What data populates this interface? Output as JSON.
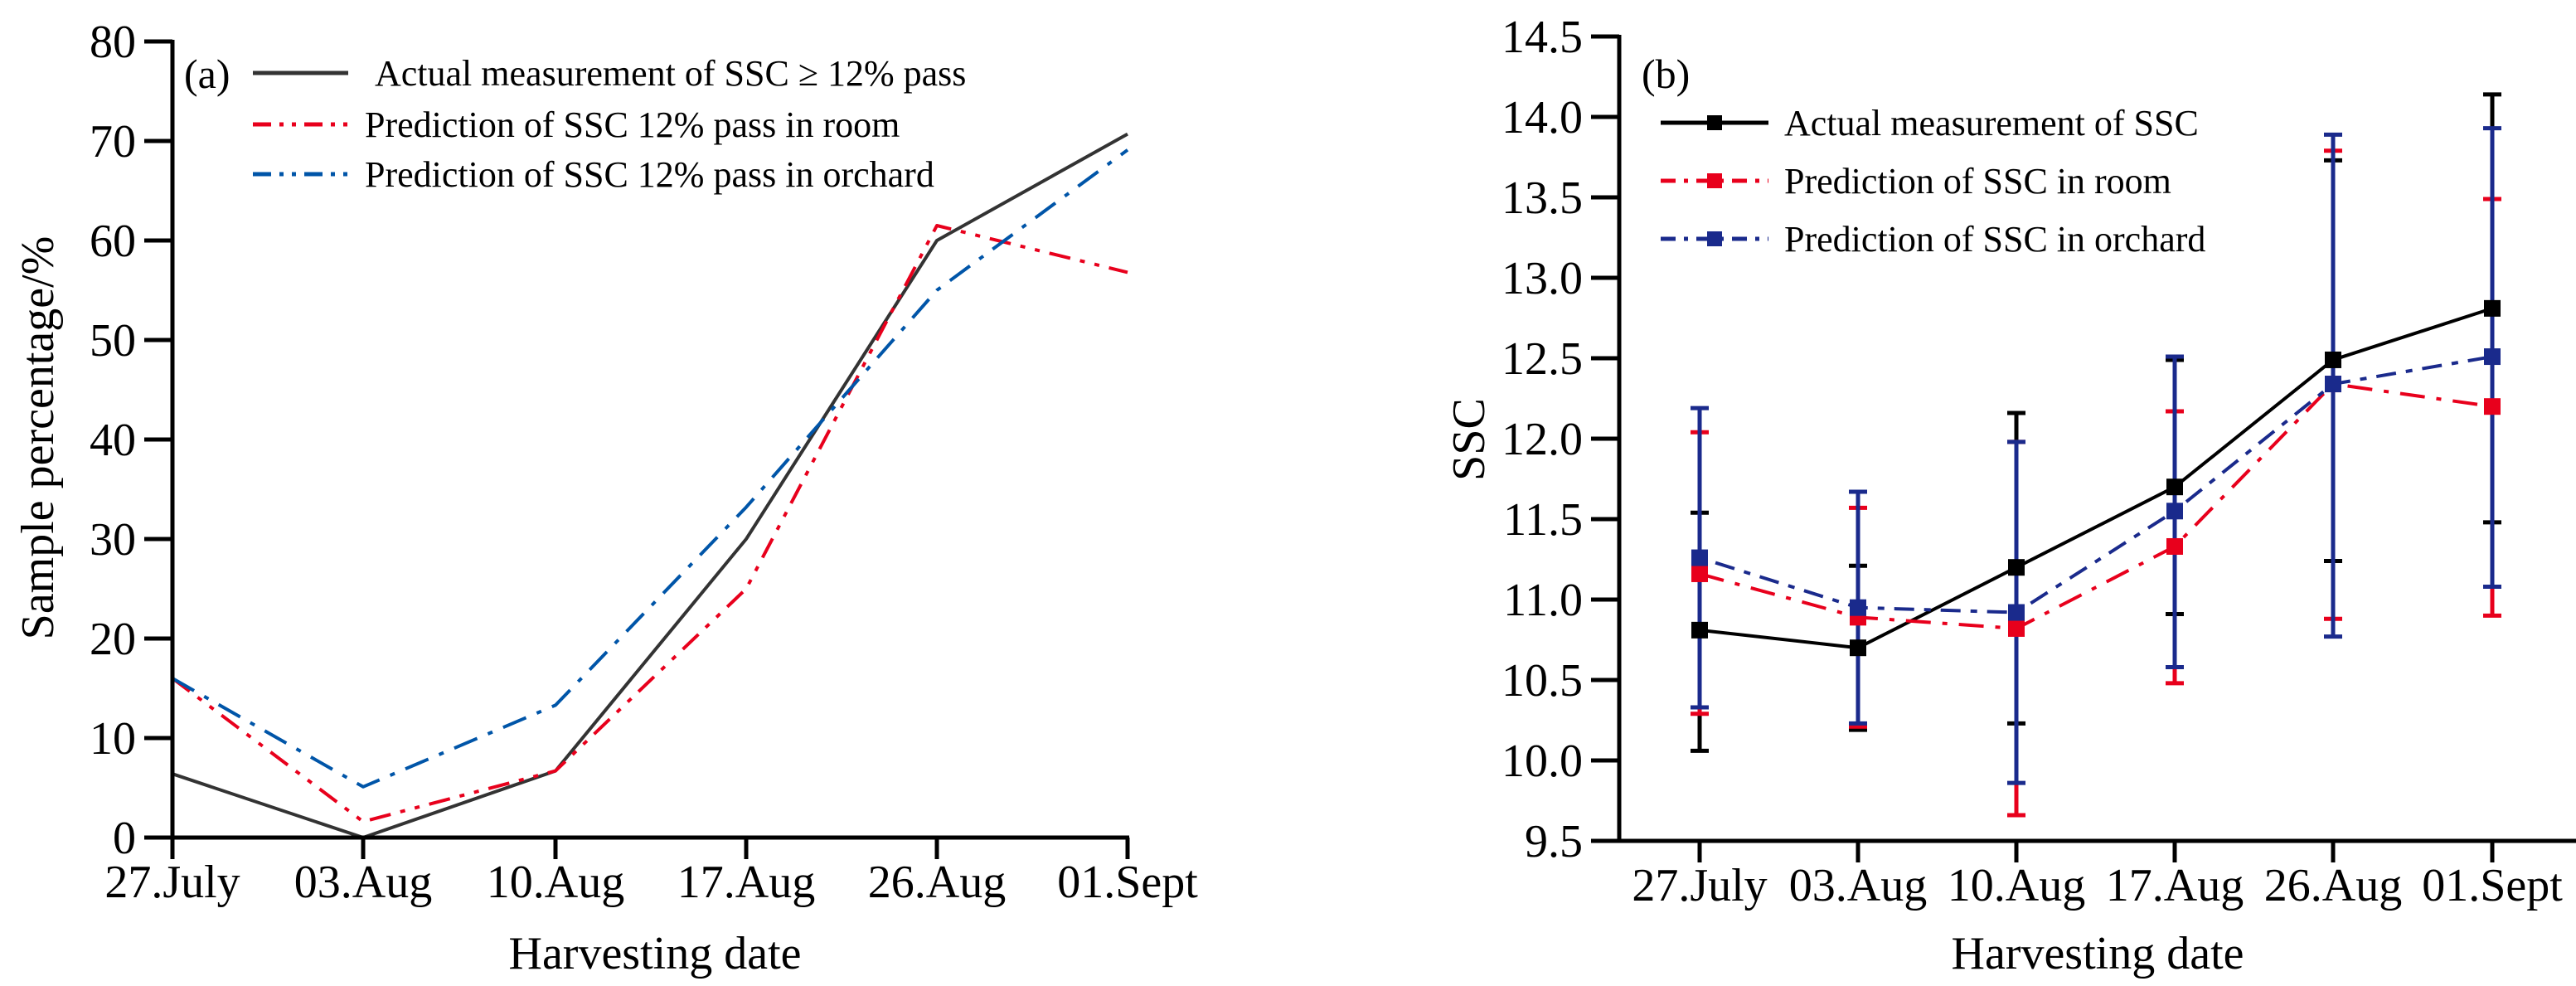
{
  "chart_data": [
    {
      "type": "line",
      "panel_label": "(a)",
      "title": "",
      "xlabel": "Harvesting date",
      "ylabel": "Sample percentage/%",
      "categories": [
        "27.July",
        "03.Aug",
        "10.Aug",
        "17.Aug",
        "26.Aug",
        "01.Sept"
      ],
      "ylim": [
        0,
        80
      ],
      "yticks": [
        "0",
        "10",
        "20",
        "30",
        "40",
        "50",
        "60",
        "70",
        "80"
      ],
      "ytick_values": [
        0,
        10,
        20,
        30,
        40,
        50,
        60,
        70,
        80
      ],
      "grid": false,
      "legend_position": "top-left",
      "series": [
        {
          "name": "Actual measurement of SSC ≥ 12% pass",
          "color": "#333333",
          "dash": "solid",
          "values": [
            6.4,
            0.0,
            6.7,
            30.0,
            60.0,
            70.7
          ]
        },
        {
          "name": "Prediction of SSC 12% pass in room",
          "color": "#e8001c",
          "dash": "dash-dot-dot",
          "values": [
            16.0,
            1.6,
            6.7,
            25.0,
            61.5,
            56.8
          ]
        },
        {
          "name": "Prediction of SSC 12% pass in orchard",
          "color": "#0055a8",
          "dash": "dash-dot",
          "values": [
            16.0,
            5.1,
            13.3,
            33.2,
            55.0,
            69.1
          ]
        }
      ]
    },
    {
      "type": "line",
      "panel_label": "(b)",
      "title": "",
      "xlabel": "Harvesting date",
      "ylabel": "SSC",
      "categories": [
        "27.July",
        "03.Aug",
        "10.Aug",
        "17.Aug",
        "26.Aug",
        "01.Sept"
      ],
      "ylim": [
        9.5,
        14.5
      ],
      "yticks": [
        "9.5",
        "10.0",
        "10.5",
        "11.0",
        "11.5",
        "12.0",
        "12.5",
        "13.0",
        "13.5",
        "14.0",
        "14.5"
      ],
      "ytick_values": [
        9.5,
        10.0,
        10.5,
        11.0,
        11.5,
        12.0,
        12.5,
        13.0,
        13.5,
        14.0,
        14.5
      ],
      "grid": false,
      "legend_position": "top-left",
      "error_bars": true,
      "series": [
        {
          "name": "Actual measurement of SSC",
          "color": "#000000",
          "dash": "solid",
          "marker": "square",
          "values": [
            10.81,
            10.7,
            11.2,
            11.7,
            12.49,
            12.81
          ],
          "err_high": [
            11.54,
            11.21,
            12.16,
            12.49,
            13.73,
            14.14
          ],
          "err_low": [
            10.06,
            10.19,
            10.23,
            10.91,
            11.24,
            11.48
          ]
        },
        {
          "name": "Prediction of SSC  in room",
          "color": "#e8001c",
          "dash": "dash-dot",
          "marker": "square",
          "values": [
            11.16,
            10.89,
            10.82,
            11.33,
            12.34,
            12.2
          ],
          "err_high": [
            12.04,
            11.57,
            11.98,
            12.17,
            13.79,
            13.49
          ],
          "err_low": [
            10.29,
            10.21,
            9.66,
            10.48,
            10.88,
            10.9
          ]
        },
        {
          "name": "Prediction of SSC  in orchard",
          "color": "#1a2a8c",
          "dash": "dot-dash",
          "marker": "square",
          "values": [
            11.26,
            10.95,
            10.92,
            11.55,
            12.34,
            12.51
          ],
          "err_high": [
            12.19,
            11.67,
            11.98,
            12.51,
            13.89,
            13.93
          ],
          "err_low": [
            10.33,
            10.23,
            9.86,
            10.58,
            10.77,
            11.08
          ]
        }
      ]
    }
  ]
}
